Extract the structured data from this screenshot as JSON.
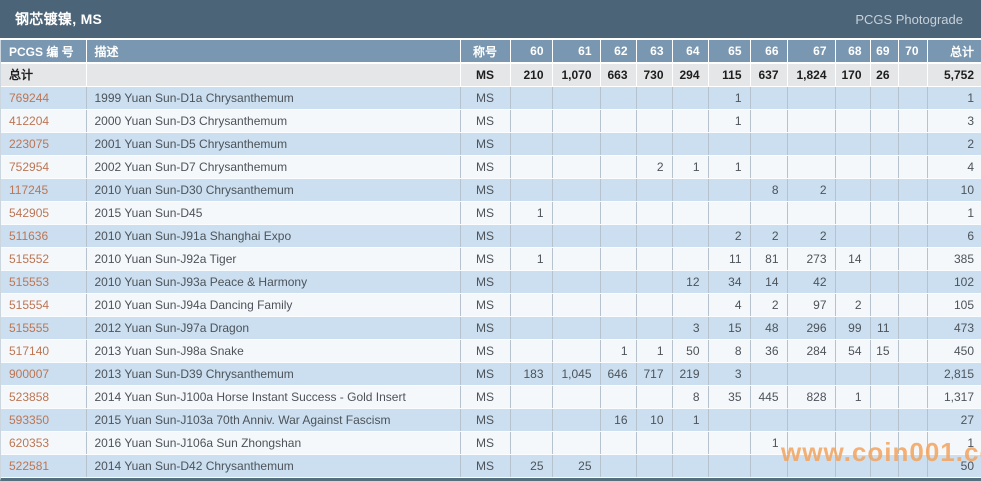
{
  "title_bar": {
    "title": "钢芯镀镍, MS",
    "link": "PCGS Photograde"
  },
  "watermark": "www.coin001.com",
  "table": {
    "headers": {
      "pcgs_no": "PCGS 编 号",
      "description": "描述",
      "designation": "称号",
      "total": "总计"
    },
    "grade_columns": [
      "60",
      "61",
      "62",
      "63",
      "64",
      "65",
      "66",
      "67",
      "68",
      "69",
      "70"
    ],
    "totals_row": {
      "label": "总计",
      "designation": "MS",
      "grades": [
        "210",
        "1,070",
        "663",
        "730",
        "294",
        "115",
        "637",
        "1,824",
        "170",
        "26",
        ""
      ],
      "total": "5,752"
    },
    "rows": [
      {
        "pcgs_no": "769244",
        "description": "1999 Yuan Sun-D1a Chrysanthemum",
        "designation": "MS",
        "grades": [
          "",
          "",
          "",
          "",
          "",
          "1",
          "",
          "",
          "",
          "",
          ""
        ],
        "total": "1"
      },
      {
        "pcgs_no": "412204",
        "description": "2000 Yuan Sun-D3 Chrysanthemum",
        "designation": "MS",
        "grades": [
          "",
          "",
          "",
          "",
          "",
          "1",
          "",
          "",
          "",
          "",
          ""
        ],
        "total": "3"
      },
      {
        "pcgs_no": "223075",
        "description": "2001 Yuan Sun-D5 Chrysanthemum",
        "designation": "MS",
        "grades": [
          "",
          "",
          "",
          "",
          "",
          "",
          "",
          "",
          "",
          "",
          ""
        ],
        "total": "2"
      },
      {
        "pcgs_no": "752954",
        "description": "2002 Yuan Sun-D7 Chrysanthemum",
        "designation": "MS",
        "grades": [
          "",
          "",
          "",
          "2",
          "1",
          "1",
          "",
          "",
          "",
          "",
          ""
        ],
        "total": "4"
      },
      {
        "pcgs_no": "117245",
        "description": "2010 Yuan Sun-D30 Chrysanthemum",
        "designation": "MS",
        "grades": [
          "",
          "",
          "",
          "",
          "",
          "",
          "8",
          "2",
          "",
          "",
          ""
        ],
        "total": "10"
      },
      {
        "pcgs_no": "542905",
        "description": "2015 Yuan Sun-D45",
        "designation": "MS",
        "grades": [
          "1",
          "",
          "",
          "",
          "",
          "",
          "",
          "",
          "",
          "",
          ""
        ],
        "total": "1"
      },
      {
        "pcgs_no": "511636",
        "description": "2010 Yuan Sun-J91a Shanghai Expo",
        "designation": "MS",
        "grades": [
          "",
          "",
          "",
          "",
          "",
          "2",
          "2",
          "2",
          "",
          "",
          ""
        ],
        "total": "6"
      },
      {
        "pcgs_no": "515552",
        "description": "2010 Yuan Sun-J92a Tiger",
        "designation": "MS",
        "grades": [
          "1",
          "",
          "",
          "",
          "",
          "11",
          "81",
          "273",
          "14",
          "",
          ""
        ],
        "total": "385"
      },
      {
        "pcgs_no": "515553",
        "description": "2010 Yuan Sun-J93a Peace & Harmony",
        "designation": "MS",
        "grades": [
          "",
          "",
          "",
          "",
          "12",
          "34",
          "14",
          "42",
          "",
          "",
          ""
        ],
        "total": "102"
      },
      {
        "pcgs_no": "515554",
        "description": "2010 Yuan Sun-J94a Dancing Family",
        "designation": "MS",
        "grades": [
          "",
          "",
          "",
          "",
          "",
          "4",
          "2",
          "97",
          "2",
          "",
          ""
        ],
        "total": "105"
      },
      {
        "pcgs_no": "515555",
        "description": "2012 Yuan Sun-J97a Dragon",
        "designation": "MS",
        "grades": [
          "",
          "",
          "",
          "",
          "3",
          "15",
          "48",
          "296",
          "99",
          "11",
          ""
        ],
        "total": "473"
      },
      {
        "pcgs_no": "517140",
        "description": "2013 Yuan Sun-J98a Snake",
        "designation": "MS",
        "grades": [
          "",
          "",
          "1",
          "1",
          "50",
          "8",
          "36",
          "284",
          "54",
          "15",
          ""
        ],
        "total": "450"
      },
      {
        "pcgs_no": "900007",
        "description": "2013 Yuan Sun-D39 Chrysanthemum",
        "designation": "MS",
        "grades": [
          "183",
          "1,045",
          "646",
          "717",
          "219",
          "3",
          "",
          "",
          "",
          "",
          ""
        ],
        "total": "2,815"
      },
      {
        "pcgs_no": "523858",
        "description": "2014 Yuan Sun-J100a Horse Instant Success - Gold Insert",
        "designation": "MS",
        "grades": [
          "",
          "",
          "",
          "",
          "8",
          "35",
          "445",
          "828",
          "1",
          "",
          ""
        ],
        "total": "1,317"
      },
      {
        "pcgs_no": "593350",
        "description": "2015 Yuan Sun-J103a 70th Anniv. War Against Fascism",
        "designation": "MS",
        "grades": [
          "",
          "",
          "16",
          "10",
          "1",
          "",
          "",
          "",
          "",
          "",
          ""
        ],
        "total": "27"
      },
      {
        "pcgs_no": "620353",
        "description": "2016 Yuan Sun-J106a Sun Zhongshan",
        "designation": "MS",
        "grades": [
          "",
          "",
          "",
          "",
          "",
          "",
          "1",
          "",
          "",
          "",
          ""
        ],
        "total": "1"
      },
      {
        "pcgs_no": "522581",
        "description": "2014 Yuan Sun-D42 Chrysanthemum",
        "designation": "MS",
        "grades": [
          "25",
          "25",
          "",
          "",
          "",
          "",
          "",
          "",
          "",
          "",
          ""
        ],
        "total": "50"
      }
    ]
  }
}
